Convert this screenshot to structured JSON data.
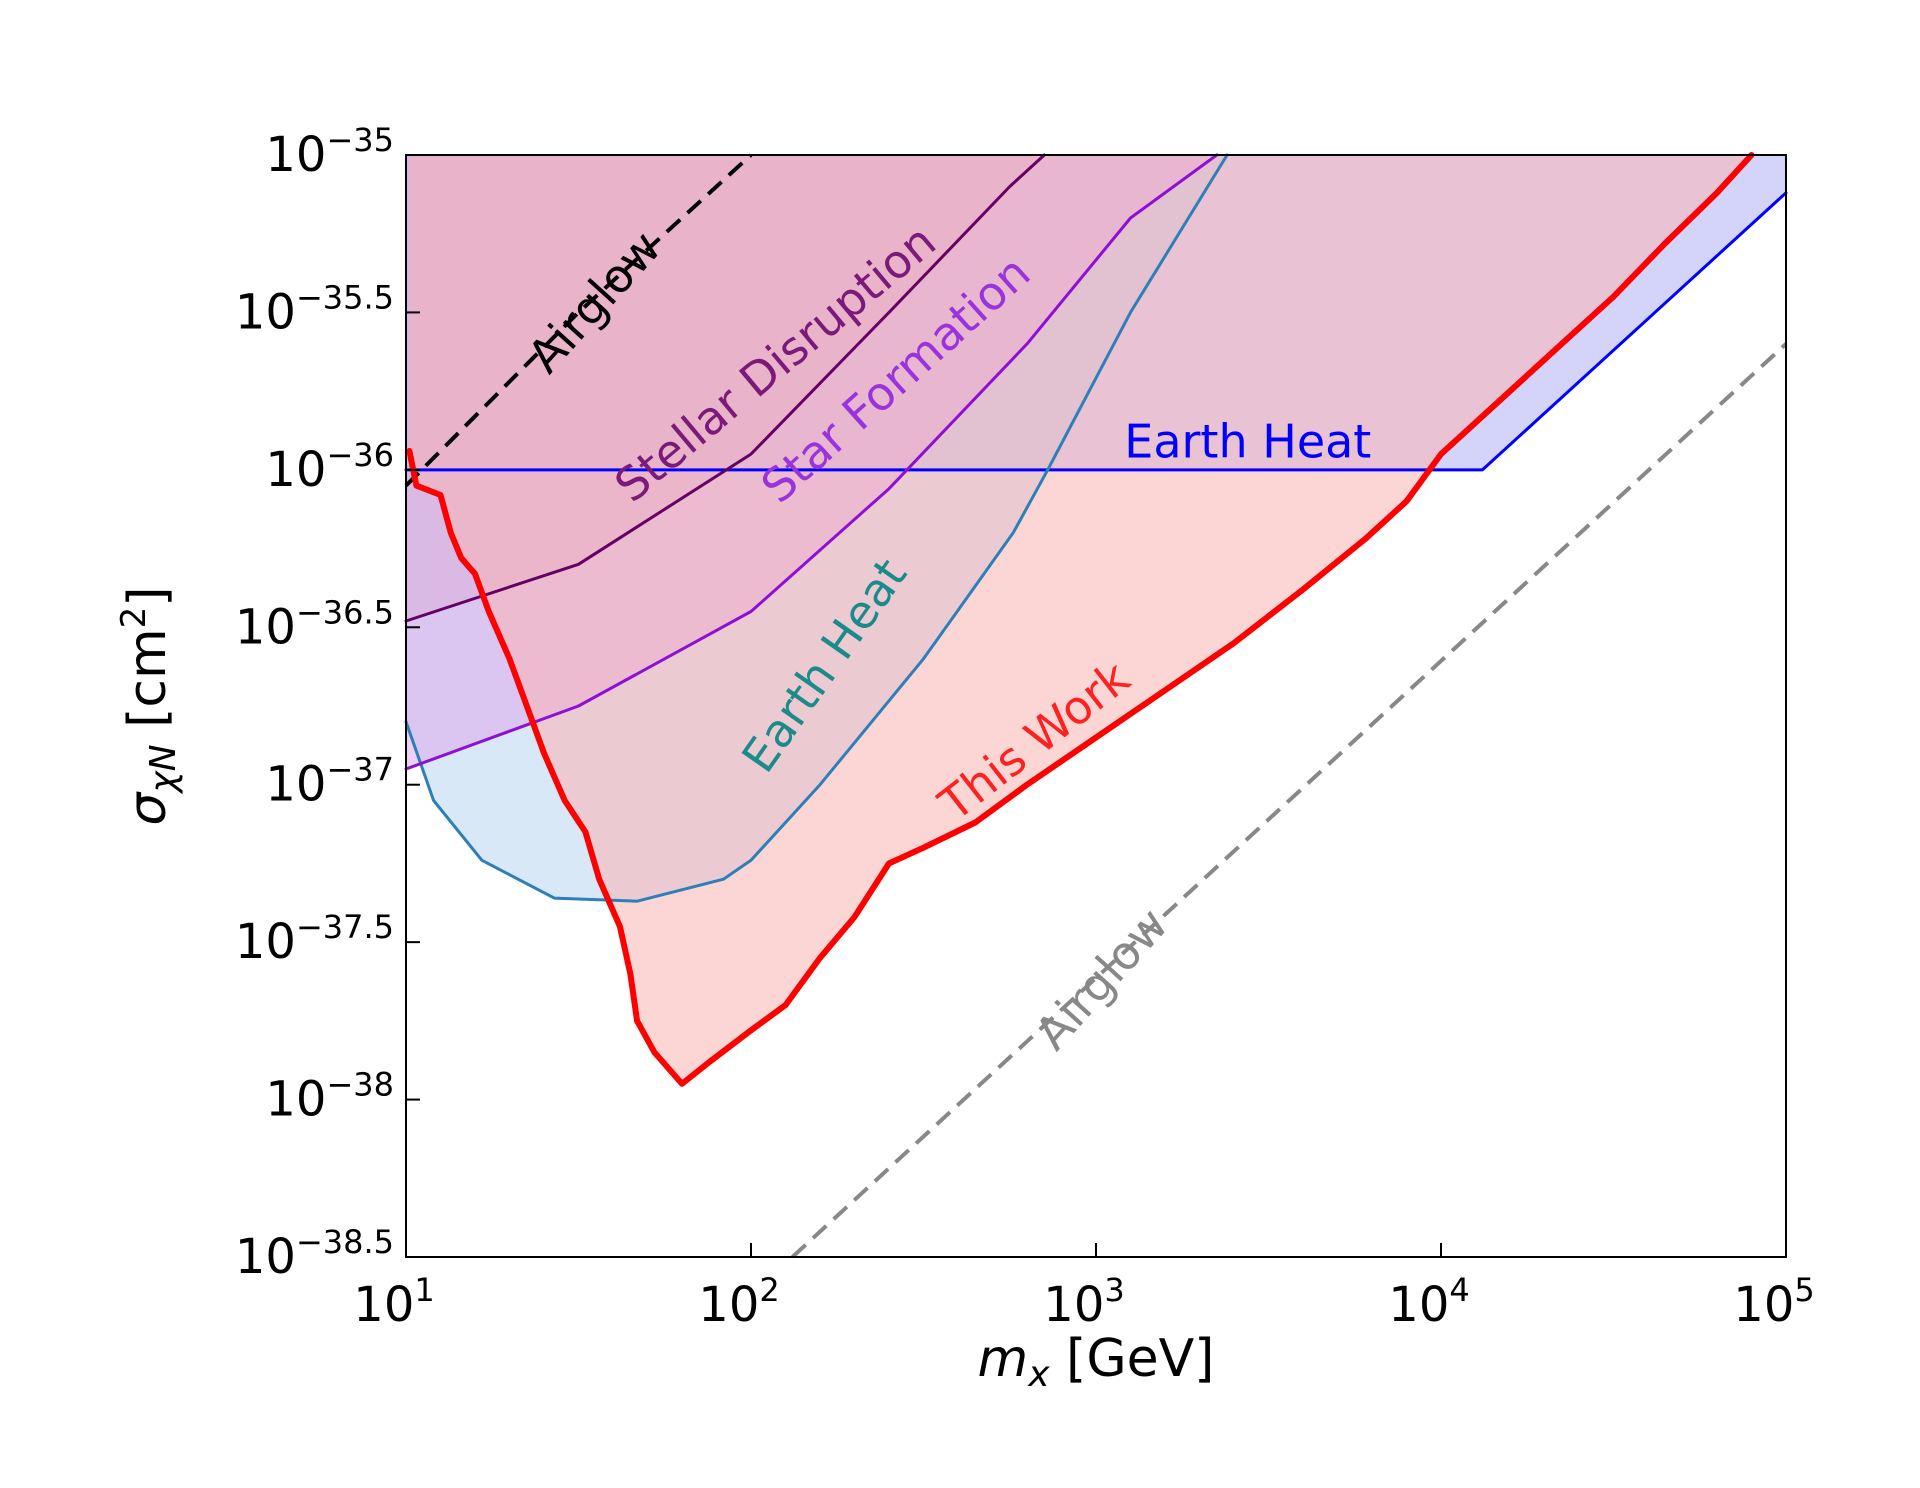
{
  "chart_data": {
    "type": "line",
    "xlabel": {
      "main": "m",
      "sub": "x",
      "unit": " [GeV]"
    },
    "ylabel": {
      "main": "σ",
      "sub": "χN",
      "unit": " [cm",
      "sup": "2",
      "close": "]"
    },
    "xscale": "log",
    "yscale": "log",
    "xlim_log10": [
      1,
      5
    ],
    "ylim_log10": [
      -38.5,
      -35
    ],
    "x_ticks": [
      {
        "base": "10",
        "exp": "1",
        "value_log10": 1
      },
      {
        "base": "10",
        "exp": "2",
        "value_log10": 2
      },
      {
        "base": "10",
        "exp": "3",
        "value_log10": 3
      },
      {
        "base": "10",
        "exp": "4",
        "value_log10": 4
      },
      {
        "base": "10",
        "exp": "5",
        "value_log10": 5
      }
    ],
    "y_ticks": [
      {
        "base": "10",
        "exp": "−35",
        "value_log10": -35
      },
      {
        "base": "10",
        "exp": "−35.5",
        "value_log10": -35.5
      },
      {
        "base": "10",
        "exp": "−36",
        "value_log10": -36
      },
      {
        "base": "10",
        "exp": "−36.5",
        "value_log10": -36.5
      },
      {
        "base": "10",
        "exp": "−37",
        "value_log10": -37
      },
      {
        "base": "10",
        "exp": "−37.5",
        "value_log10": -37.5
      },
      {
        "base": "10",
        "exp": "−38",
        "value_log10": -38
      },
      {
        "base": "10",
        "exp": "−38.5",
        "value_log10": -38.5
      }
    ],
    "grid": false,
    "legend": "none",
    "note": "all coordinates given as log10(m_x / GeV), log10(sigma / cm^2)",
    "series": [
      {
        "name": "Earth Heat",
        "label_color": "#0000ff",
        "color": "#0000ff",
        "fill": "#b0b0f8",
        "dash": "none",
        "width": 3,
        "points": [
          [
            1,
            -36
          ],
          [
            4.12,
            -36
          ],
          [
            5,
            -35.12
          ]
        ],
        "fill_to": "top"
      },
      {
        "name": "Earth Heat",
        "label_color": "#1a8a8a",
        "color": "#2e7fb8",
        "fill": "#b9d6ee",
        "dash": "none",
        "width": 3,
        "points": [
          [
            1,
            -36.8
          ],
          [
            1.08,
            -37.05
          ],
          [
            1.22,
            -37.24
          ],
          [
            1.43,
            -37.36
          ],
          [
            1.67,
            -37.37
          ],
          [
            1.92,
            -37.3
          ],
          [
            2,
            -37.24
          ],
          [
            2.2,
            -37.0
          ],
          [
            2.5,
            -36.6
          ],
          [
            2.76,
            -36.2
          ],
          [
            2.86,
            -36.0
          ],
          [
            3.1,
            -35.5
          ],
          [
            3.38,
            -35
          ]
        ],
        "fill_to": "top"
      },
      {
        "name": "Star Formation",
        "label_color": "#9933dd",
        "color": "#8e10d6",
        "fill": "#dcaaee",
        "dash": "none",
        "width": 3,
        "points": [
          [
            1,
            -36.95
          ],
          [
            1.5,
            -36.75
          ],
          [
            2,
            -36.45
          ],
          [
            2.4,
            -36.06
          ],
          [
            2.8,
            -35.6
          ],
          [
            3.1,
            -35.2
          ],
          [
            3.35,
            -35
          ]
        ],
        "fill_to": "top"
      },
      {
        "name": "Stellar Disruption",
        "label_color": "#7a1a7a",
        "color": "#660066",
        "fill": "#d8b0d8",
        "dash": "none",
        "width": 3,
        "points": [
          [
            1,
            -36.48
          ],
          [
            1.5,
            -36.3
          ],
          [
            2,
            -35.95
          ],
          [
            2.4,
            -35.5
          ],
          [
            2.75,
            -35.1
          ],
          [
            2.85,
            -35
          ]
        ],
        "fill_to": "top"
      },
      {
        "name": "Airglow",
        "label_color": "#000000",
        "color": "#000000",
        "dash": "18,10",
        "width": 4,
        "points": [
          [
            1,
            -36.05
          ],
          [
            1.5,
            -35.5
          ],
          [
            2,
            -35
          ]
        ]
      },
      {
        "name": "This Work",
        "label_color": "#ff2020",
        "color": "#ff0000",
        "fill": "#f9b2b2",
        "dash": "none",
        "width": 6,
        "points": [
          [
            1.01,
            -35.94
          ],
          [
            1.03,
            -36.05
          ],
          [
            1.1,
            -36.08
          ],
          [
            1.13,
            -36.2
          ],
          [
            1.16,
            -36.28
          ],
          [
            1.2,
            -36.33
          ],
          [
            1.24,
            -36.45
          ],
          [
            1.3,
            -36.6
          ],
          [
            1.35,
            -36.75
          ],
          [
            1.4,
            -36.9
          ],
          [
            1.46,
            -37.05
          ],
          [
            1.52,
            -37.15
          ],
          [
            1.56,
            -37.3
          ],
          [
            1.62,
            -37.45
          ],
          [
            1.65,
            -37.6
          ],
          [
            1.67,
            -37.75
          ],
          [
            1.72,
            -37.85
          ],
          [
            1.8,
            -37.95
          ],
          [
            1.88,
            -37.88
          ],
          [
            2.0,
            -37.78
          ],
          [
            2.1,
            -37.7
          ],
          [
            2.2,
            -37.55
          ],
          [
            2.3,
            -37.42
          ],
          [
            2.4,
            -37.25
          ],
          [
            2.5,
            -37.2
          ],
          [
            2.65,
            -37.12
          ],
          [
            2.8,
            -37.0
          ],
          [
            3.0,
            -36.85
          ],
          [
            3.2,
            -36.7
          ],
          [
            3.4,
            -36.55
          ],
          [
            3.6,
            -36.38
          ],
          [
            3.78,
            -36.22
          ],
          [
            3.9,
            -36.1
          ],
          [
            4.0,
            -35.95
          ],
          [
            4.1,
            -35.85
          ],
          [
            4.2,
            -35.75
          ],
          [
            4.35,
            -35.6
          ],
          [
            4.5,
            -35.45
          ],
          [
            4.65,
            -35.28
          ],
          [
            4.8,
            -35.12
          ],
          [
            4.9,
            -35
          ]
        ],
        "fill_to": "top"
      },
      {
        "name": "Airglow",
        "label_color": "#888888",
        "color": "#888888",
        "dash": "18,10",
        "width": 4,
        "points": [
          [
            2.12,
            -38.5
          ],
          [
            5,
            -35.6
          ]
        ]
      }
    ],
    "annotations": [
      {
        "text": "Airglow",
        "color": "#000000",
        "x_log10": 1.58,
        "y_log10": -35.5,
        "rotate": -48
      },
      {
        "text": "Stellar Disruption",
        "color": "#7a1a7a",
        "x_log10": 2.1,
        "y_log10": -35.7,
        "rotate": -40
      },
      {
        "text": "Star Formation",
        "color": "#9933dd",
        "x_log10": 2.45,
        "y_log10": -35.75,
        "rotate": -42
      },
      {
        "text": "Earth Heat",
        "color": "#0000ff",
        "x_log10": 3.44,
        "y_log10": -35.96,
        "rotate": 0
      },
      {
        "text": "Earth Heat",
        "color": "#1a8a8a",
        "x_log10": 2.25,
        "y_log10": -36.65,
        "rotate": -55
      },
      {
        "text": "This Work",
        "color": "#ff2020",
        "x_log10": 2.85,
        "y_log10": -36.9,
        "rotate": -38
      },
      {
        "text": "Airglow",
        "color": "#888888",
        "x_log10": 3.05,
        "y_log10": -37.65,
        "rotate": -48
      }
    ]
  }
}
